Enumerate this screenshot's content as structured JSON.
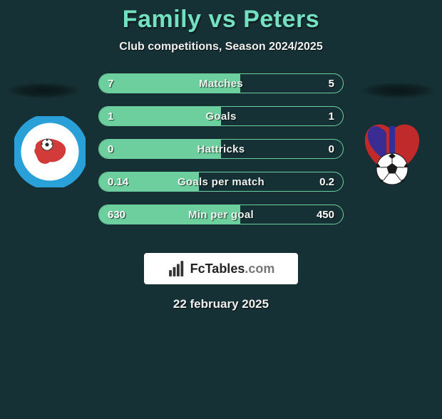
{
  "background_color": "#163135",
  "title": {
    "text": "Family vs Peters",
    "color": "#74e0c2",
    "fontsize": 34
  },
  "subtitle": {
    "text": "Club competitions, Season 2024/2025",
    "color": "#f0f0f0",
    "fontsize": 16
  },
  "accent_left_color": "#6ccf9d",
  "row_border_color": "#6ccf9d",
  "text_color": "#ffffff",
  "rows": [
    {
      "label": "Matches",
      "left_display": "7",
      "right_display": "5",
      "left_val": 7,
      "right_val": 5,
      "left_fill_pct": 58
    },
    {
      "label": "Goals",
      "left_display": "1",
      "right_display": "1",
      "left_val": 1,
      "right_val": 1,
      "left_fill_pct": 50
    },
    {
      "label": "Hattricks",
      "left_display": "0",
      "right_display": "0",
      "left_val": 0,
      "right_val": 0,
      "left_fill_pct": 50
    },
    {
      "label": "Goals per match",
      "left_display": "0.14",
      "right_display": "0.2",
      "left_val": 0.14,
      "right_val": 0.2,
      "left_fill_pct": 41
    },
    {
      "label": "Min per goal",
      "left_display": "630",
      "right_display": "450",
      "left_val": 630,
      "right_val": 450,
      "left_fill_pct": 58
    }
  ],
  "brand": {
    "name": "FcTables",
    "suffix": ".com"
  },
  "footer_date": "22 february 2025",
  "left_badge": {
    "ring_color": "#2aa0d8",
    "ring_text_color": "#ffffff",
    "inner_bg": "#ffffff",
    "map_color": "#d33b3b",
    "ball_color": "#2a2a2a"
  },
  "right_badge": {
    "bg": "#2a2ea0",
    "heart_color": "#c02a2a",
    "ball_white": "#ffffff",
    "ball_black": "#1a1a1a"
  }
}
